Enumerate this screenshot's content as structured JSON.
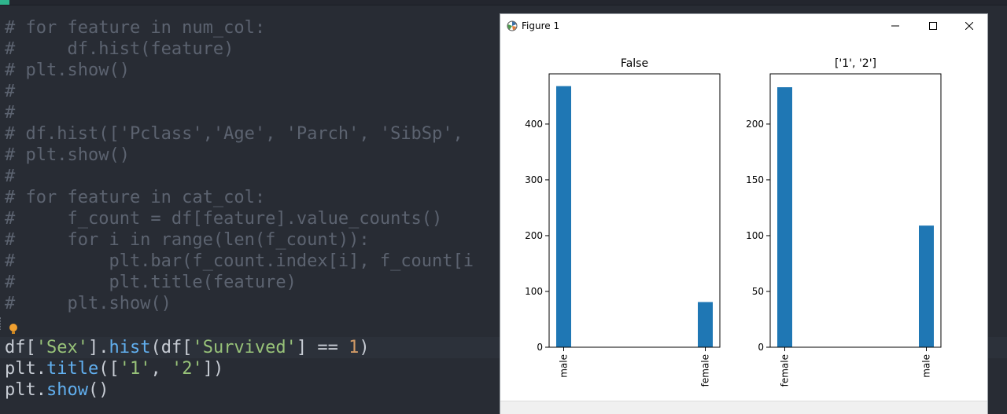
{
  "editor": {
    "lines": [
      "# for feature in num_col:",
      "#     df.hist(feature)",
      "# plt.show()",
      "#",
      "#",
      "# df.hist(['Pclass','Age', 'Parch', 'SibSp',",
      "# plt.show()",
      "#",
      "# for feature in cat_col:",
      "#     f_count = df[feature].value_counts()",
      "#     for i in range(len(f_count)):",
      "#         plt.bar(f_count.index[i], f_count[i",
      "#         plt.title(feature)",
      "#     plt.show()"
    ],
    "code1": {
      "df": "df[",
      "s1": "'Sex'",
      "br1": "].",
      "fn1": "hist",
      "p1": "(df[",
      "s2": "'Survived'",
      "op": "] == ",
      "n1": "1",
      "close": ")"
    },
    "code2": {
      "plt": "plt.",
      "fn": "title",
      "open": "([",
      "s1": "'1'",
      "comma": ", ",
      "s2": "'2'",
      "close": "])"
    },
    "code3": {
      "plt": "plt.",
      "fn": "show",
      "paren": "()"
    }
  },
  "figure_window": {
    "title": "Figure 1",
    "controls": {
      "minimize": "minimize-icon",
      "maximize": "maximize-icon",
      "close": "close-icon"
    }
  },
  "colors": {
    "bar": "#1f77b4",
    "editor_bg": "#282c34",
    "comment": "#5c6370",
    "string": "#98c379",
    "number": "#d19a66",
    "function": "#61afef"
  },
  "chart_data": [
    {
      "type": "bar",
      "title": "False",
      "categories": [
        "male",
        "female"
      ],
      "values": [
        468,
        81
      ],
      "ylim": [
        0,
        490
      ],
      "yticks": [
        0,
        100,
        200,
        300,
        400
      ],
      "xlabel": "",
      "ylabel": "",
      "grid": false
    },
    {
      "type": "bar",
      "title": "['1', '2']",
      "categories": [
        "female",
        "male"
      ],
      "values": [
        233,
        109
      ],
      "ylim": [
        0,
        245
      ],
      "yticks": [
        0,
        50,
        100,
        150,
        200
      ],
      "xlabel": "",
      "ylabel": "",
      "grid": false
    }
  ]
}
